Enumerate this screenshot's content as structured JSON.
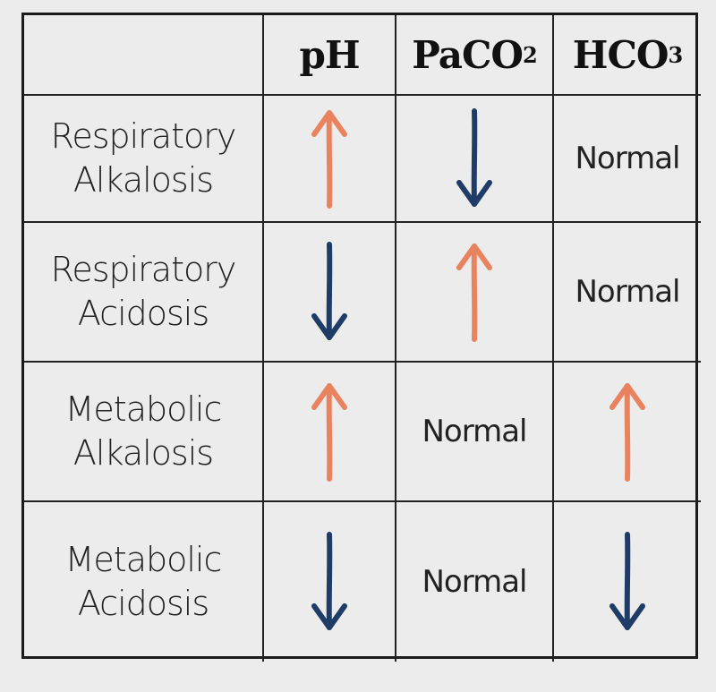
{
  "table": {
    "headers": {
      "corner": "",
      "ph": "pH",
      "paco2_main": "PaCO",
      "paco2_sub": "2",
      "hco3_main": "HCO",
      "hco3_sub": "3"
    },
    "rows": [
      {
        "label_line1": "Respiratory",
        "label_line2": "Alkalosis",
        "ph": "up-arrow",
        "paco2": "down-arrow",
        "hco3": "Normal"
      },
      {
        "label_line1": "Respiratory",
        "label_line2": "Acidosis",
        "ph": "down-arrow",
        "paco2": "up-arrow",
        "hco3": "Normal"
      },
      {
        "label_line1": "Metabolic",
        "label_line2": "Alkalosis",
        "ph": "up-arrow",
        "paco2": "Normal",
        "hco3": "up-arrow"
      },
      {
        "label_line1": "Metabolic",
        "label_line2": "Acidosis",
        "ph": "down-arrow",
        "paco2": "Normal",
        "hco3": "down-arrow"
      }
    ]
  },
  "colors": {
    "up_arrow": "#e9825e",
    "down_arrow": "#1f3c66",
    "grid_lines": "#222222",
    "background": "#ececed"
  }
}
